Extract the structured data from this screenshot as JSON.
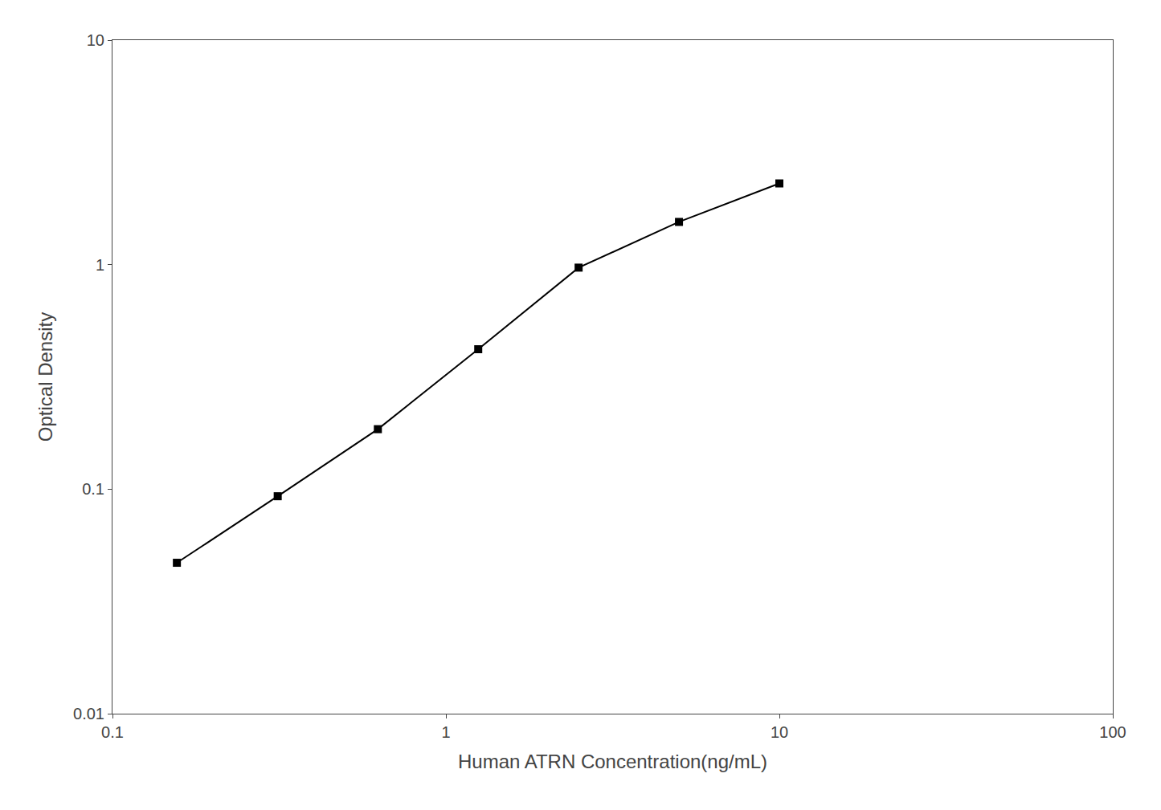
{
  "chart_data": {
    "type": "line",
    "x": [
      0.156,
      0.313,
      0.625,
      1.25,
      2.5,
      5.0,
      10.0
    ],
    "values": [
      0.047,
      0.093,
      0.185,
      0.42,
      0.97,
      1.55,
      2.3
    ],
    "xlabel": "Human ATRN Concentration(ng/mL)",
    "ylabel": "Optical Density",
    "xlim": [
      0.1,
      100
    ],
    "ylim": [
      0.01,
      10
    ],
    "xticks": [
      0.1,
      1,
      10,
      100
    ],
    "yticks": [
      0.01,
      0.1,
      1,
      10
    ],
    "log": true,
    "grid": false,
    "color": "#000000",
    "marker": "square"
  }
}
